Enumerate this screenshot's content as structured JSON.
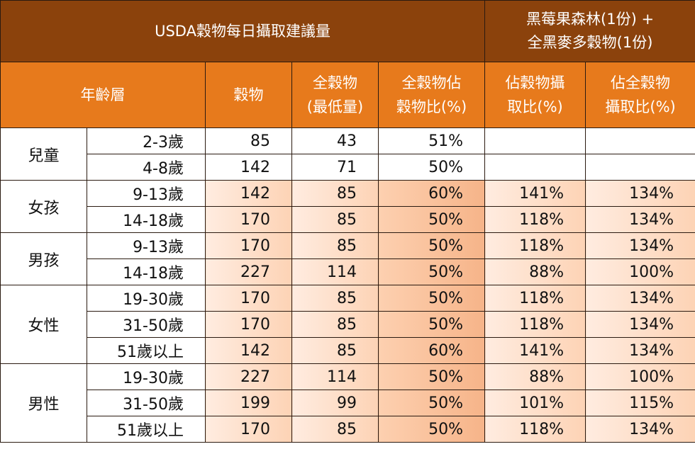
{
  "title": "USDA穀物每日攝取建議量",
  "product_header": {
    "line1": "黑莓果森林(1份) +",
    "line2": "全黑麥多穀物(1份)"
  },
  "columns": {
    "age_group": "年齡層",
    "grain": "穀物",
    "whole_grain_line1": "全穀物",
    "whole_grain_line2": "(最低量)",
    "whole_ratio_line1": "全穀物佔",
    "whole_ratio_line2": "穀物比(%)",
    "grain_intake_line1": "佔穀物攝",
    "grain_intake_line2": "取比(%)",
    "whole_intake_line1": "佔全穀物",
    "whole_intake_line2": "攝取比(%)"
  },
  "groups": [
    {
      "name": "兒童",
      "rows": [
        {
          "age": "2-3歲",
          "grain": "85",
          "whole": "43",
          "ratio": "51%",
          "grain_pct": "",
          "whole_pct": ""
        },
        {
          "age": "4-8歲",
          "grain": "142",
          "whole": "71",
          "ratio": "50%",
          "grain_pct": "",
          "whole_pct": ""
        }
      ]
    },
    {
      "name": "女孩",
      "rows": [
        {
          "age": "9-13歲",
          "grain": "142",
          "whole": "85",
          "ratio": "60%",
          "grain_pct": "141%",
          "whole_pct": "134%"
        },
        {
          "age": "14-18歲",
          "grain": "170",
          "whole": "85",
          "ratio": "50%",
          "grain_pct": "118%",
          "whole_pct": "134%"
        }
      ]
    },
    {
      "name": "男孩",
      "rows": [
        {
          "age": "9-13歲",
          "grain": "170",
          "whole": "85",
          "ratio": "50%",
          "grain_pct": "118%",
          "whole_pct": "134%"
        },
        {
          "age": "14-18歲",
          "grain": "227",
          "whole": "114",
          "ratio": "50%",
          "grain_pct": "88%",
          "whole_pct": "100%"
        }
      ]
    },
    {
      "name": "女性",
      "rows": [
        {
          "age": "19-30歲",
          "grain": "170",
          "whole": "85",
          "ratio": "50%",
          "grain_pct": "118%",
          "whole_pct": "134%"
        },
        {
          "age": "31-50歲",
          "grain": "170",
          "whole": "85",
          "ratio": "50%",
          "grain_pct": "118%",
          "whole_pct": "134%"
        },
        {
          "age": "51歲以上",
          "grain": "142",
          "whole": "85",
          "ratio": "60%",
          "grain_pct": "141%",
          "whole_pct": "134%"
        }
      ]
    },
    {
      "name": "男性",
      "rows": [
        {
          "age": "19-30歲",
          "grain": "227",
          "whole": "114",
          "ratio": "50%",
          "grain_pct": "88%",
          "whole_pct": "100%"
        },
        {
          "age": "31-50歲",
          "grain": "199",
          "whole": "99",
          "ratio": "50%",
          "grain_pct": "101%",
          "whole_pct": "115%"
        },
        {
          "age": "51歲以上",
          "grain": "170",
          "whole": "85",
          "ratio": "50%",
          "grain_pct": "118%",
          "whole_pct": "134%"
        }
      ]
    }
  ],
  "colors": {
    "title_bg": "#8b420c",
    "header_bg": "#e77a1c",
    "shade_light": "#fde0cc",
    "shade_mid": "#f8bf96"
  }
}
